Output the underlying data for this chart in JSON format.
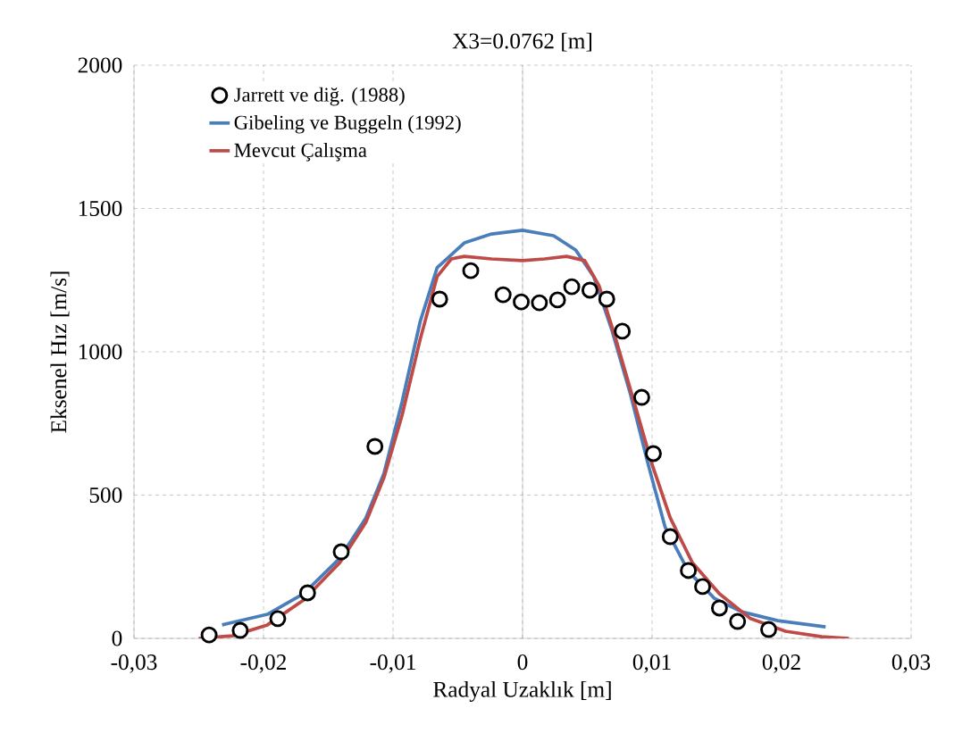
{
  "chart_data": {
    "type": "line",
    "title": "X3=0.0762 [m]",
    "xlabel": "Radyal Uzaklık [m]",
    "ylabel": "Eksenel Hız [m/s]",
    "xlim": [
      -0.03,
      0.03
    ],
    "ylim": [
      0,
      2000
    ],
    "xticks": [
      {
        "value": -0.03,
        "label": "-0,03"
      },
      {
        "value": -0.02,
        "label": "-0,02"
      },
      {
        "value": -0.01,
        "label": "-0,01"
      },
      {
        "value": 0,
        "label": "0"
      },
      {
        "value": 0.01,
        "label": "0,01"
      },
      {
        "value": 0.02,
        "label": "0,02"
      },
      {
        "value": 0.03,
        "label": "0,03"
      }
    ],
    "yticks": [
      0,
      500,
      1000,
      1500,
      2000
    ],
    "grid": true,
    "legend": "top left",
    "series": [
      {
        "name": "Jarrett ve diğ. (1988)",
        "type": "scatter",
        "marker": "circle",
        "color": "#000000",
        "x": [
          -0.0242,
          -0.0218,
          -0.0189,
          -0.0166,
          -0.014,
          -0.0114,
          -0.0064,
          -0.004,
          -0.0015,
          -0.0001,
          0.0013,
          0.0027,
          0.0038,
          0.0052,
          0.0065,
          0.0077,
          0.0092,
          0.0101,
          0.0114,
          0.0128,
          0.0139,
          0.0152,
          0.0166,
          0.019
        ],
        "values": [
          12,
          28,
          69,
          159,
          302,
          670,
          1184,
          1283,
          1199,
          1174,
          1171,
          1181,
          1227,
          1215,
          1184,
          1072,
          841,
          645,
          355,
          237,
          181,
          106,
          59,
          31
        ]
      },
      {
        "name": "Gibeling ve Buggeln (1992)",
        "type": "line",
        "marker": "none",
        "color": "#4a7ebb",
        "x": [
          -0.0232,
          -0.0197,
          -0.0169,
          -0.0141,
          -0.0121,
          -0.0107,
          -0.0093,
          -0.0079,
          -0.0066,
          -0.0045,
          -0.0024,
          0,
          0.0024,
          0.0041,
          0.0055,
          0.0069,
          0.0083,
          0.0097,
          0.011,
          0.0128,
          0.0148,
          0.0169,
          0.0197,
          0.0234
        ],
        "values": [
          47,
          84,
          156,
          280,
          420,
          576,
          826,
          1106,
          1293,
          1380,
          1411,
          1424,
          1405,
          1355,
          1262,
          1075,
          857,
          607,
          389,
          234,
          140,
          93,
          62,
          40
        ]
      },
      {
        "name": "Mevcut Çalışma",
        "type": "line",
        "marker": "none",
        "color": "#be4b48",
        "x": [
          -0.025,
          -0.0224,
          -0.0197,
          -0.0169,
          -0.0141,
          -0.0121,
          -0.0107,
          -0.0093,
          -0.0079,
          -0.0066,
          -0.0055,
          -0.0045,
          -0.0024,
          0,
          0.0017,
          0.0034,
          0.0048,
          0.0059,
          0.0072,
          0.0086,
          0.01,
          0.0114,
          0.0131,
          0.0152,
          0.0176,
          0.0203,
          0.0231,
          0.0252
        ],
        "values": [
          0,
          9,
          47,
          134,
          265,
          405,
          561,
          779,
          1044,
          1262,
          1324,
          1333,
          1324,
          1318,
          1324,
          1333,
          1318,
          1231,
          1044,
          826,
          607,
          421,
          265,
          156,
          69,
          25,
          6,
          0
        ]
      }
    ]
  }
}
